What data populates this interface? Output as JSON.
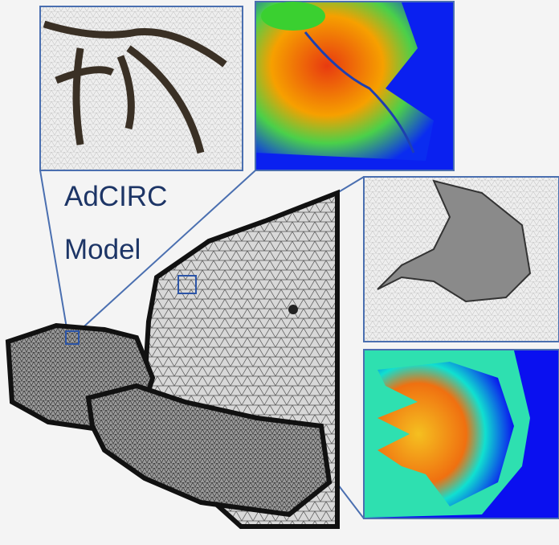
{
  "label": {
    "line1": "AdCIRC",
    "line2": "Model"
  }
}
